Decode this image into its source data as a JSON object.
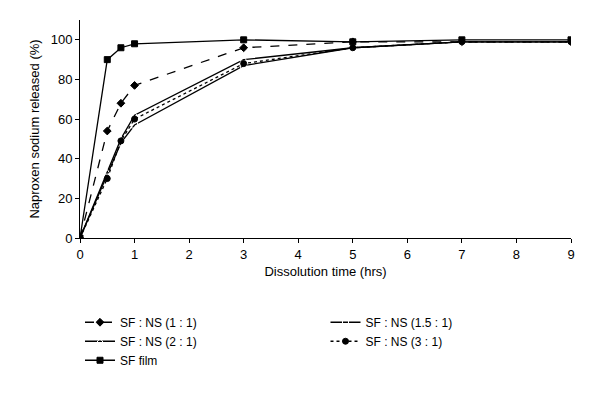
{
  "chart_data": {
    "type": "line",
    "x_label": "Dissolution time (hrs)",
    "y_label": "Naproxen sodium released (%)",
    "x": [
      0,
      0.5,
      0.75,
      1,
      3,
      5,
      7,
      9
    ],
    "series": [
      {
        "name": "SF : NS (1 : 1)",
        "color": "#000000",
        "marker": "diamond",
        "line_style": "dash",
        "values": [
          0,
          54,
          68,
          77,
          96,
          99,
          99,
          99
        ]
      },
      {
        "name": "SF : NS (1.5 : 1)",
        "color": "#000000",
        "marker": "square-open",
        "line_style": "solid",
        "values": [
          0,
          32,
          48,
          57,
          87,
          96,
          99,
          99
        ]
      },
      {
        "name": "SF : NS (2 : 1)",
        "color": "#000000",
        "marker": "triangle-up-open",
        "line_style": "solid",
        "values": [
          0,
          33,
          50,
          62,
          90,
          96,
          99,
          99
        ]
      },
      {
        "name": "SF : NS (3 : 1)",
        "color": "#000000",
        "marker": "circle",
        "line_style": "dot",
        "values": [
          0,
          30,
          49,
          60,
          88,
          96,
          99,
          99
        ]
      },
      {
        "name": "SF film",
        "color": "#000000",
        "marker": "square",
        "line_style": "solid",
        "values": [
          0,
          90,
          96,
          98,
          100,
          99,
          100,
          100
        ]
      }
    ],
    "xlim": [
      0,
      9
    ],
    "xticks": [
      0,
      1,
      2,
      3,
      4,
      5,
      6,
      7,
      8,
      9
    ],
    "ylim": [
      0,
      110
    ],
    "yticks": [
      0,
      20,
      40,
      60,
      80,
      100
    ],
    "grid": false,
    "legend": "bottom"
  }
}
